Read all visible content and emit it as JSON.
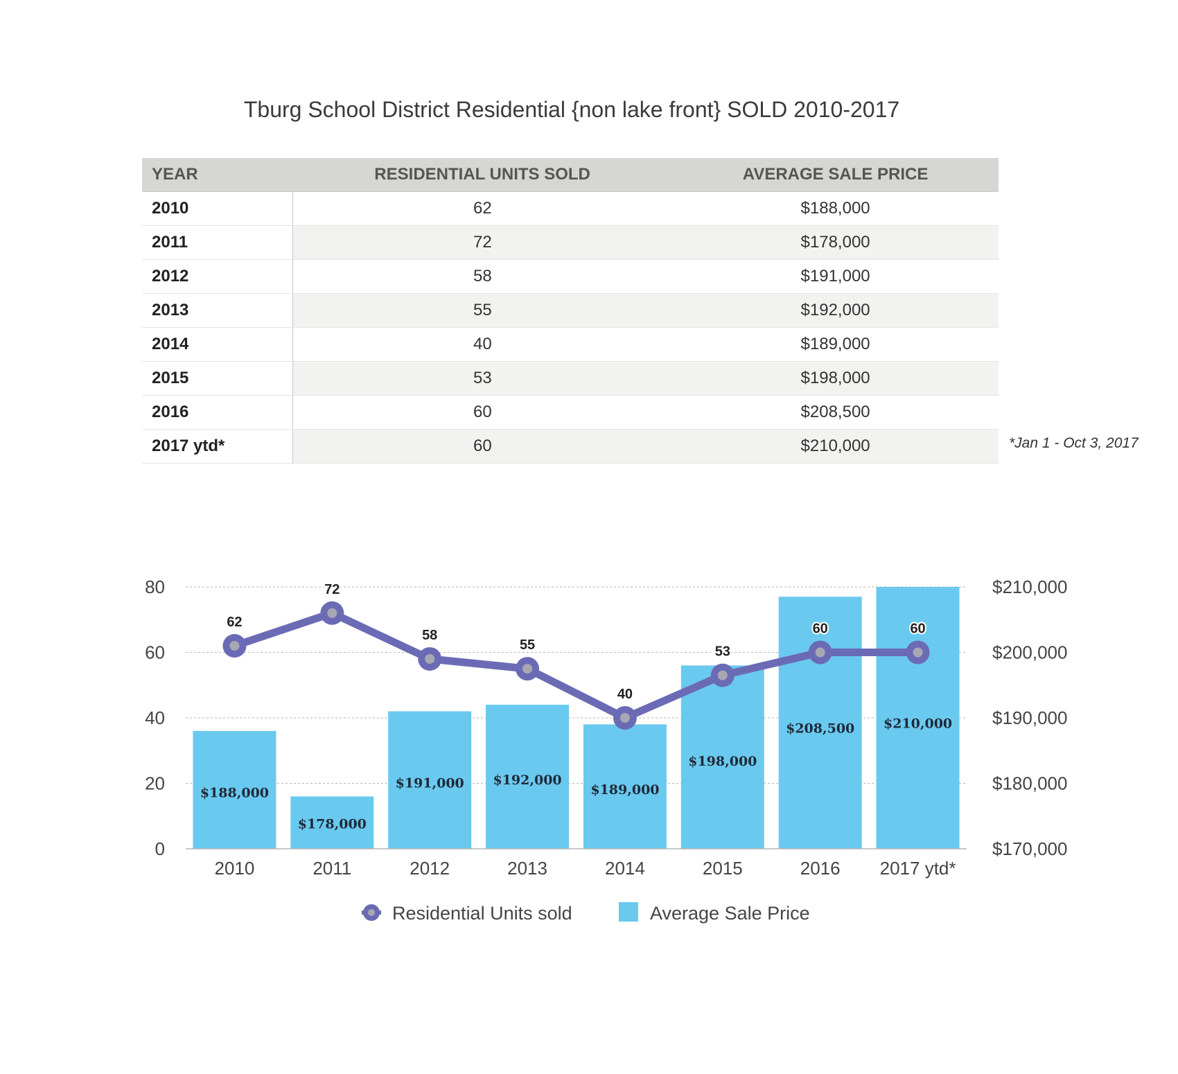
{
  "title": "Tburg School District Residential {non lake front} SOLD  2010-2017",
  "table": {
    "headers": {
      "year": "YEAR",
      "units": "RESIDENTIAL UNITS SOLD",
      "price": "AVERAGE SALE PRICE"
    },
    "rows": [
      {
        "year": "2010",
        "units": "62",
        "price": "$188,000"
      },
      {
        "year": "2011",
        "units": "72",
        "price": "$178,000"
      },
      {
        "year": "2012",
        "units": "58",
        "price": "$191,000"
      },
      {
        "year": "2013",
        "units": "55",
        "price": "$192,000"
      },
      {
        "year": "2014",
        "units": "40",
        "price": "$189,000"
      },
      {
        "year": "2015",
        "units": "53",
        "price": "$198,000"
      },
      {
        "year": "2016",
        "units": "60",
        "price": "$208,500"
      },
      {
        "year": "2017  ytd*",
        "units": "60",
        "price": "$210,000"
      }
    ]
  },
  "footnote": "*Jan 1 - Oct 3, 2017",
  "chart_data": {
    "type": "bar",
    "title": "",
    "categories": [
      "2010",
      "2011",
      "2012",
      "2013",
      "2014",
      "2015",
      "2016",
      "2017  ytd*"
    ],
    "series": [
      {
        "name": "Average Sale Price",
        "kind": "bar",
        "axis": "right",
        "values": [
          188000,
          178000,
          191000,
          192000,
          189000,
          198000,
          208500,
          210000
        ],
        "labels": [
          "$188,000",
          "$178,000",
          "$191,000",
          "$192,000",
          "$189,000",
          "$198,000",
          "$208,500",
          "$210,000"
        ],
        "color": "#6ac9ee"
      },
      {
        "name": "Residential Units sold",
        "kind": "line",
        "axis": "left",
        "values": [
          62,
          72,
          58,
          55,
          40,
          53,
          60,
          60
        ],
        "labels": [
          "62",
          "72",
          "58",
          "55",
          "40",
          "53",
          "60",
          "60"
        ],
        "color": "#6b6bb5"
      }
    ],
    "y_left": {
      "ticks": [
        "0",
        "20",
        "40",
        "60",
        "80"
      ],
      "range": [
        0,
        80
      ]
    },
    "y_right": {
      "ticks": [
        "$170,000",
        "$180,000",
        "$190,000",
        "$200,000",
        "$210,000"
      ],
      "range": [
        170000,
        210000
      ]
    },
    "legend": {
      "position": "bottom",
      "items": [
        "Residential Units sold",
        "Average Sale Price"
      ]
    },
    "grid": true
  }
}
